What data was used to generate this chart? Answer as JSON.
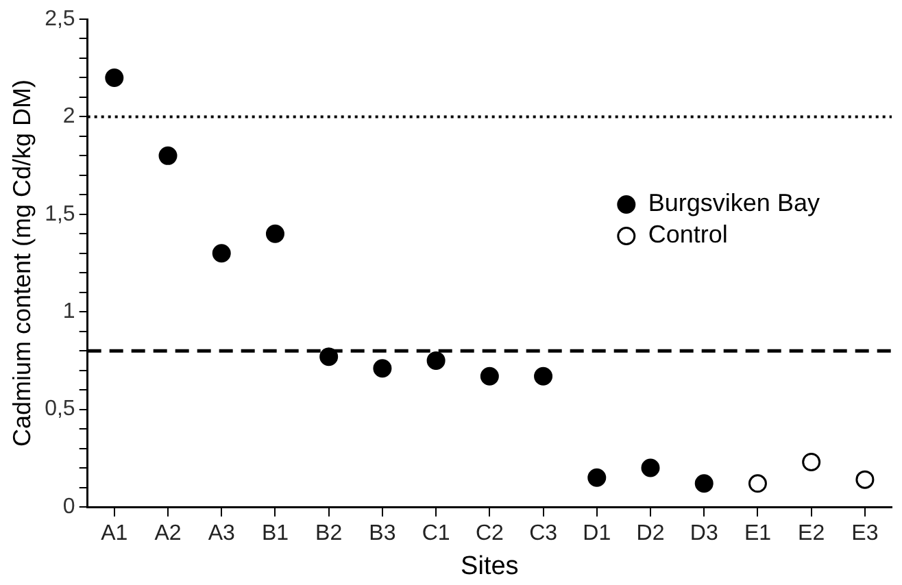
{
  "chart_data": {
    "type": "scatter",
    "xlabel": "Sites",
    "ylabel": "Cadmium content (mg Cd/kg DM)",
    "categories": [
      "A1",
      "A2",
      "A3",
      "B1",
      "B2",
      "B3",
      "C1",
      "C2",
      "C3",
      "D1",
      "D2",
      "D3",
      "E1",
      "E2",
      "E3"
    ],
    "series": [
      {
        "name": "Burgsviken Bay",
        "color": "#000000",
        "x": [
          "A1",
          "A2",
          "A3",
          "B1",
          "B2",
          "B3",
          "C1",
          "C2",
          "C3",
          "D1",
          "D2",
          "D3"
        ],
        "values": [
          2.2,
          1.8,
          1.3,
          1.4,
          0.77,
          0.71,
          0.75,
          0.67,
          0.67,
          0.15,
          0.2,
          0.12
        ]
      },
      {
        "name": "Control",
        "color": "#ffffff",
        "x": [
          "E1",
          "E2",
          "E3"
        ],
        "values": [
          0.12,
          0.23,
          0.14
        ]
      }
    ],
    "ylim": [
      0,
      2.5
    ],
    "yticks": [
      0,
      {
        "value": 0.1,
        "label": null
      },
      {
        "value": 0.2,
        "label": null
      },
      {
        "value": 0.3,
        "label": null
      },
      {
        "value": 0.4,
        "label": null
      },
      {
        "value": 0.5,
        "label": "0,5"
      },
      {
        "value": 0.6,
        "label": null
      },
      {
        "value": 0.7,
        "label": null
      },
      {
        "value": 0.8,
        "label": null
      },
      {
        "value": 0.9,
        "label": null
      },
      1,
      {
        "value": 1.1,
        "label": null
      },
      {
        "value": 1.2,
        "label": null
      },
      {
        "value": 1.3,
        "label": null
      },
      {
        "value": 1.4,
        "label": null
      },
      {
        "value": 1.5,
        "label": "1,5"
      },
      {
        "value": 1.6,
        "label": null
      },
      {
        "value": 1.7,
        "label": null
      },
      {
        "value": 1.8,
        "label": null
      },
      {
        "value": 1.9,
        "label": null
      },
      2,
      {
        "value": 2.1,
        "label": null
      },
      {
        "value": 2.2,
        "label": null
      },
      {
        "value": 2.3,
        "label": null
      },
      {
        "value": 2.4,
        "label": null
      },
      {
        "value": 2.5,
        "label": "2,5"
      }
    ],
    "ref_lines": [
      {
        "axis": "y",
        "value": 2,
        "line_style": "dotted",
        "color": "#000000"
      },
      {
        "axis": "y",
        "value": 0.8,
        "line_style": "dashed",
        "color": "#000000"
      }
    ],
    "grid": false,
    "legend": "right",
    "marker": "circle"
  }
}
